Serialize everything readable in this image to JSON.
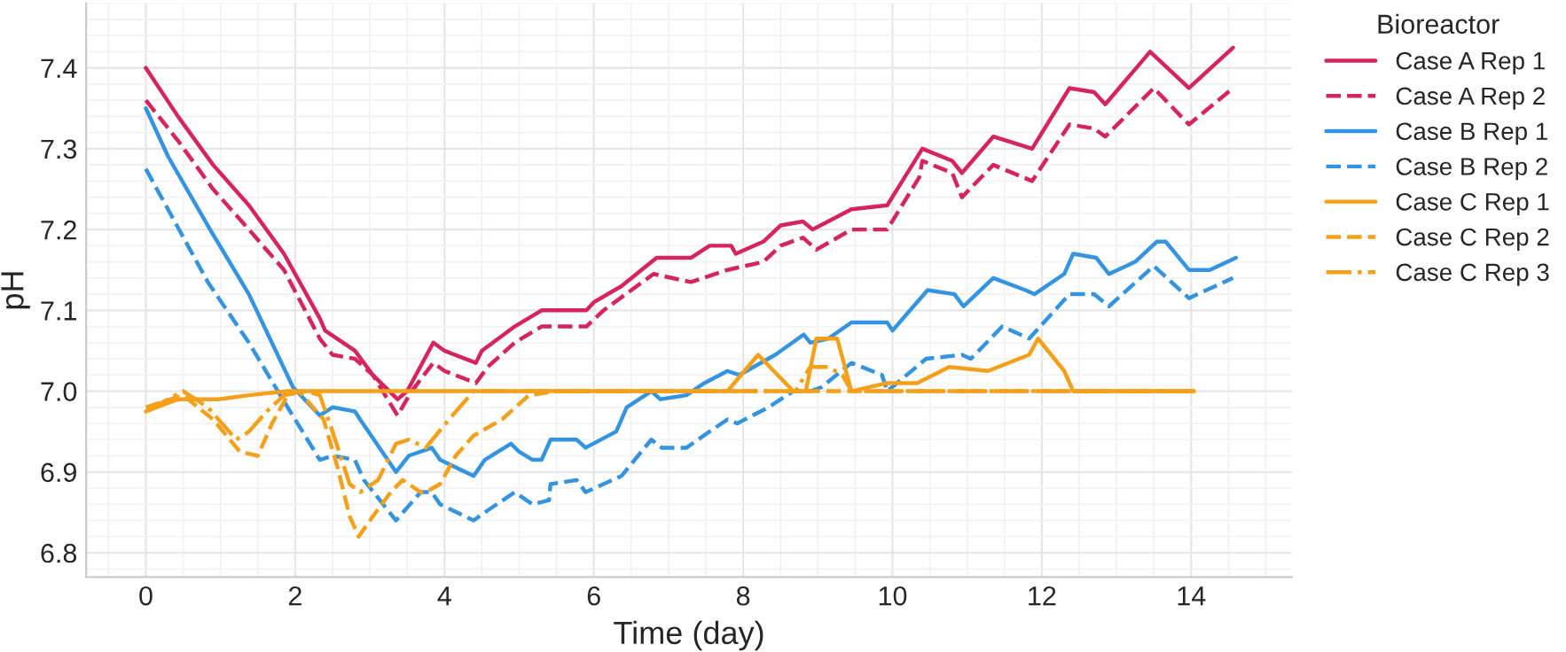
{
  "chart_data": {
    "type": "line",
    "xlabel": "Time (day)",
    "ylabel": "pH",
    "legend_title": "Bioreactor",
    "legend": "top right",
    "grid": true,
    "marker": "none",
    "xlim": [
      -0.8,
      15.35
    ],
    "ylim": [
      6.77,
      7.48
    ],
    "xticks": [
      0,
      2,
      4,
      6,
      8,
      10,
      12,
      14
    ],
    "yticks": [
      6.8,
      6.9,
      {
        "value": 7,
        "label": "7.0"
      },
      7.1,
      7.2,
      7.3,
      7.4
    ],
    "series": [
      {
        "name": "Case A Rep 1",
        "color": "#d6245e",
        "line_style": "solid",
        "x": [
          0,
          0.43,
          0.9,
          1.38,
          1.85,
          2.33,
          2.4,
          2.8,
          3.04,
          3.37,
          3.5,
          3.85,
          4.0,
          4.42,
          4.5,
          4.94,
          5.3,
          5.9,
          6.0,
          6.37,
          6.84,
          7.3,
          7.55,
          7.84,
          7.9,
          8.27,
          8.5,
          8.8,
          8.93,
          9.45,
          9.93,
          10.4,
          10.8,
          10.93,
          11.35,
          11.87,
          12.37,
          12.7,
          12.85,
          13.45,
          13.97,
          14.56
        ],
        "values": [
          7.4,
          7.34,
          7.28,
          7.23,
          7.17,
          7.09,
          7.075,
          7.05,
          7.02,
          6.99,
          7.0,
          7.06,
          7.05,
          7.035,
          7.05,
          7.08,
          7.1,
          7.1,
          7.11,
          7.13,
          7.165,
          7.165,
          7.18,
          7.18,
          7.17,
          7.185,
          7.205,
          7.21,
          7.2,
          7.225,
          7.23,
          7.3,
          7.285,
          7.27,
          7.315,
          7.3,
          7.375,
          7.37,
          7.355,
          7.42,
          7.375,
          7.425
        ]
      },
      {
        "name": "Case A Rep 2",
        "color": "#d6245e",
        "line_style": "dashed",
        "x": [
          0,
          0.43,
          0.9,
          1.38,
          1.85,
          2.33,
          2.5,
          2.8,
          3.04,
          3.37,
          3.56,
          3.85,
          4.0,
          4.42,
          4.58,
          4.94,
          5.3,
          5.9,
          6.13,
          6.8,
          7.3,
          7.79,
          8.27,
          8.5,
          8.8,
          8.98,
          9.45,
          9.93,
          10.36,
          10.4,
          10.8,
          10.93,
          11.35,
          11.87,
          12.37,
          12.7,
          12.85,
          13.5,
          13.97,
          14.56
        ],
        "values": [
          7.36,
          7.31,
          7.25,
          7.2,
          7.15,
          7.065,
          7.045,
          7.04,
          7.02,
          6.97,
          7.0,
          7.035,
          7.025,
          7.01,
          7.03,
          7.06,
          7.08,
          7.08,
          7.1,
          7.145,
          7.135,
          7.15,
          7.16,
          7.18,
          7.19,
          7.175,
          7.2,
          7.2,
          7.265,
          7.285,
          7.27,
          7.24,
          7.28,
          7.26,
          7.33,
          7.325,
          7.315,
          7.375,
          7.33,
          7.375
        ]
      },
      {
        "name": "Case B Rep 1",
        "color": "#3594e0",
        "line_style": "solid",
        "x": [
          0,
          0.3,
          0.86,
          1.38,
          1.97,
          2.33,
          2.5,
          2.8,
          2.87,
          3.35,
          3.52,
          3.83,
          3.94,
          4.39,
          4.54,
          4.89,
          5.0,
          5.18,
          5.3,
          5.42,
          5.77,
          5.89,
          6.3,
          6.44,
          6.77,
          6.89,
          7.24,
          7.48,
          7.79,
          7.95,
          8.43,
          8.81,
          8.9,
          9.14,
          9.45,
          9.93,
          10.0,
          10.47,
          10.83,
          10.95,
          11.35,
          11.78,
          11.9,
          12.3,
          12.42,
          12.73,
          12.9,
          13.25,
          13.54,
          13.66,
          13.97,
          14.25,
          14.6
        ],
        "values": [
          7.35,
          7.29,
          7.2,
          7.12,
          7.005,
          6.97,
          6.98,
          6.975,
          6.965,
          6.9,
          6.92,
          6.93,
          6.915,
          6.895,
          6.915,
          6.935,
          6.925,
          6.915,
          6.915,
          6.94,
          6.94,
          6.93,
          6.95,
          6.98,
          7.0,
          6.99,
          6.995,
          7.01,
          7.025,
          7.02,
          7.045,
          7.07,
          7.06,
          7.065,
          7.085,
          7.085,
          7.075,
          7.125,
          7.12,
          7.105,
          7.14,
          7.125,
          7.12,
          7.145,
          7.17,
          7.165,
          7.145,
          7.16,
          7.185,
          7.185,
          7.15,
          7.15,
          7.165
        ]
      },
      {
        "name": "Case B Rep 2",
        "color": "#3594e0",
        "line_style": "dashed",
        "x": [
          0,
          0.83,
          1.38,
          1.8,
          2.33,
          2.5,
          2.8,
          2.92,
          3.35,
          3.68,
          3.83,
          3.94,
          4.39,
          4.54,
          4.94,
          5.18,
          5.4,
          5.42,
          5.77,
          5.89,
          6.37,
          6.77,
          6.91,
          7.24,
          7.55,
          7.79,
          7.92,
          8.34,
          8.67,
          8.9,
          9.05,
          9.45,
          9.86,
          9.93,
          10.45,
          10.93,
          11.05,
          11.47,
          11.83,
          12.37,
          12.7,
          12.9,
          13.5,
          13.97,
          14.56
        ],
        "values": [
          7.275,
          7.135,
          7.06,
          6.995,
          6.915,
          6.92,
          6.915,
          6.89,
          6.84,
          6.875,
          6.875,
          6.86,
          6.84,
          6.85,
          6.875,
          6.86,
          6.865,
          6.885,
          6.89,
          6.875,
          6.895,
          6.94,
          6.93,
          6.93,
          6.95,
          6.965,
          6.96,
          6.98,
          7.0,
          7.0,
          7.005,
          7.035,
          7.02,
          7.0,
          7.04,
          7.045,
          7.04,
          7.08,
          7.065,
          7.12,
          7.12,
          7.105,
          7.155,
          7.115,
          7.14
        ]
      },
      {
        "name": "Case C Rep 1",
        "color": "#f5a01a",
        "line_style": "solid",
        "x": [
          0,
          0.43,
          0.98,
          1.38,
          1.9,
          7.79,
          8.2,
          8.67,
          8.84,
          8.98,
          9.26,
          9.45,
          9.93,
          10.33,
          10.76,
          11.28,
          11.83,
          11.95,
          12.3,
          12.42,
          14.04
        ],
        "values": [
          6.975,
          6.99,
          6.99,
          6.995,
          7.0,
          7.0,
          7.045,
          7.0,
          7.0,
          7.065,
          7.065,
          7.0,
          7.01,
          7.01,
          7.03,
          7.025,
          7.045,
          7.065,
          7.025,
          7.0,
          7.0
        ]
      },
      {
        "name": "Case C Rep 2",
        "color": "#f5a01a",
        "line_style": "dashed",
        "x": [
          0,
          0.5,
          0.9,
          1.26,
          1.5,
          1.69,
          1.9,
          2.05,
          2.38,
          2.57,
          2.73,
          2.85,
          3.04,
          3.28,
          3.44,
          3.68,
          3.75,
          3.94,
          4.15,
          4.39,
          4.77,
          5.13,
          5.5,
          14.04
        ],
        "values": [
          6.98,
          6.995,
          6.965,
          6.925,
          6.92,
          6.96,
          6.995,
          7.0,
          6.965,
          6.905,
          6.845,
          6.82,
          6.845,
          6.875,
          6.89,
          6.875,
          6.875,
          6.885,
          6.92,
          6.945,
          6.965,
          6.995,
          7.0,
          7.0
        ]
      },
      {
        "name": "Case C Rep 3",
        "color": "#f5a01a",
        "line_style": "dashdot",
        "x": [
          0,
          0.5,
          0.83,
          1.21,
          1.38,
          1.62,
          1.85,
          2.15,
          2.33,
          2.5,
          2.73,
          2.87,
          3.11,
          3.35,
          3.52,
          3.75,
          4.06,
          4.39,
          8.7,
          8.9,
          9.14,
          9.33,
          9.45,
          14.04
        ],
        "values": [
          6.975,
          7.0,
          6.98,
          6.94,
          6.95,
          6.975,
          6.995,
          7.0,
          6.995,
          6.95,
          6.885,
          6.875,
          6.89,
          6.935,
          6.94,
          6.93,
          6.965,
          7.0,
          7.0,
          7.03,
          7.03,
          7.02,
          7.0,
          7.0
        ]
      }
    ]
  }
}
